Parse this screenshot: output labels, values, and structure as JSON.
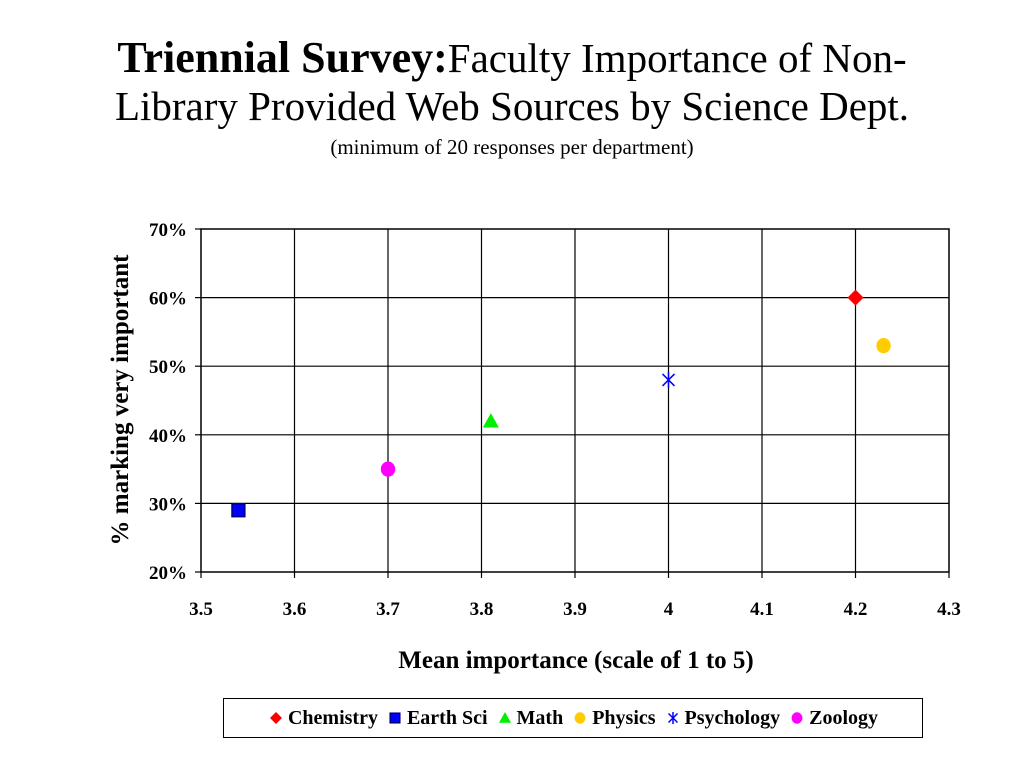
{
  "title": {
    "bold": "Triennial Survey:",
    "rest_line1": "Faculty Importance of Non-",
    "line2": "Library Provided Web Sources by Science Dept.",
    "subtitle": "(minimum of 20 responses per department)"
  },
  "chart_data": {
    "type": "scatter",
    "xlabel": "Mean importance (scale of 1 to 5)",
    "ylabel": "% marking very important",
    "xlim": [
      3.5,
      4.3
    ],
    "ylim": [
      0.2,
      0.7
    ],
    "x_ticks": [
      "3.5",
      "3.6",
      "3.7",
      "3.8",
      "3.9",
      "4",
      "4.1",
      "4.2",
      "4.3"
    ],
    "y_ticks": [
      "20%",
      "30%",
      "40%",
      "50%",
      "60%",
      "70%"
    ],
    "grid": true,
    "legend_position": "bottom",
    "series": [
      {
        "name": "Chemistry",
        "marker": "diamond",
        "color": "#ff0000",
        "x": 4.2,
        "y": 0.6
      },
      {
        "name": "Earth Sci",
        "marker": "square",
        "color": "#0000ff",
        "x": 3.54,
        "y": 0.29
      },
      {
        "name": "Math",
        "marker": "triangle",
        "color": "#00ee00",
        "x": 3.81,
        "y": 0.42
      },
      {
        "name": "Physics",
        "marker": "circle",
        "color": "#ffcc00",
        "x": 4.23,
        "y": 0.53
      },
      {
        "name": "Psychology",
        "marker": "asterisk",
        "color": "#0000ff",
        "x": 4.0,
        "y": 0.48
      },
      {
        "name": "Zoology",
        "marker": "circle",
        "color": "#ff00ff",
        "x": 3.7,
        "y": 0.35
      }
    ]
  }
}
